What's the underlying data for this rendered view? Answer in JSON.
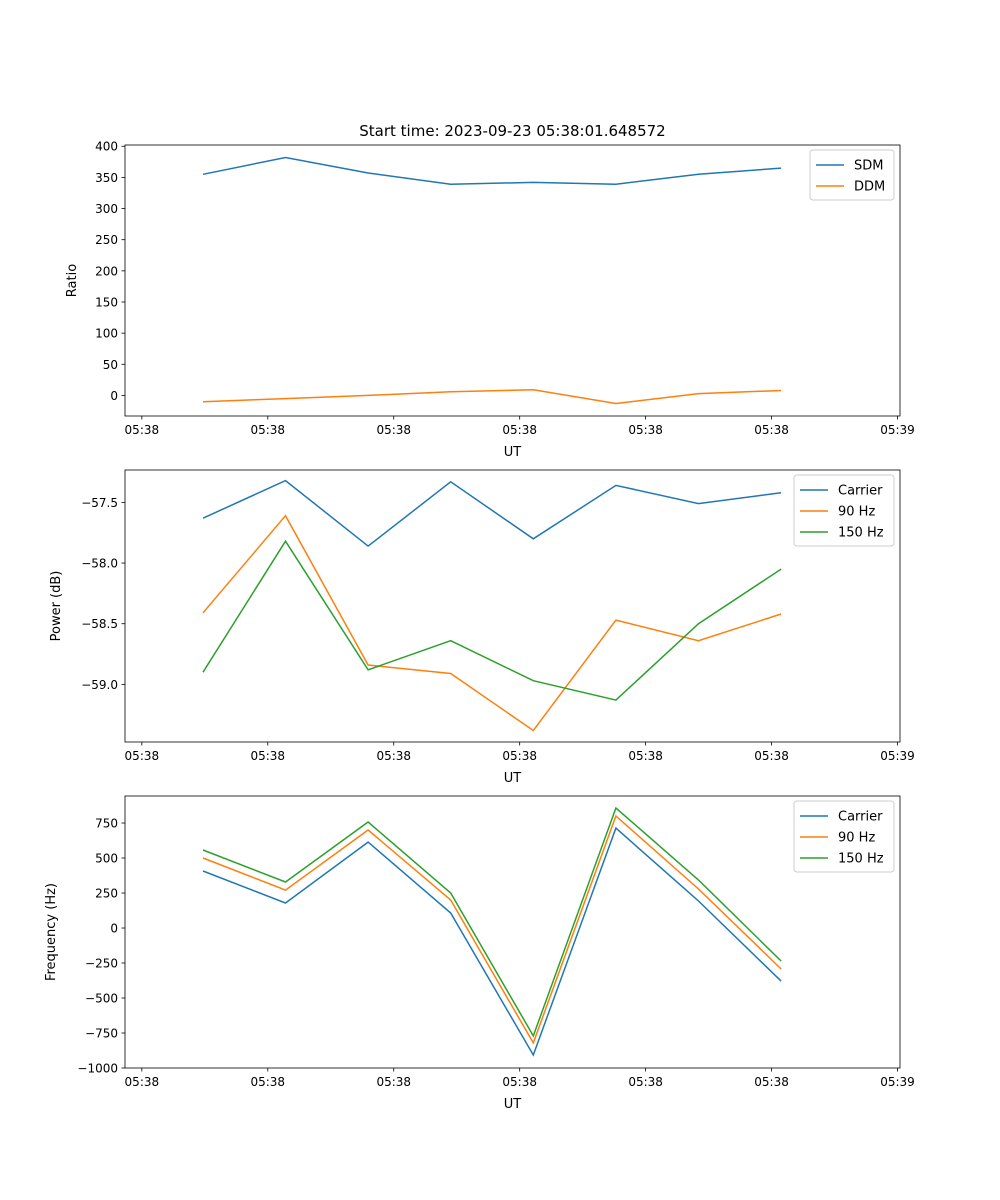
{
  "chart_data": [
    {
      "type": "line",
      "title": "Start time: 2023-09-23 05:38:01.648572",
      "xlabel": "UT",
      "ylabel": "Ratio",
      "x": [
        0,
        1,
        2,
        3,
        4,
        5,
        6,
        7
      ],
      "xlim": [
        -0.944,
        8.44
      ],
      "xticks": [
        -0.74,
        0.785,
        2.31,
        3.835,
        5.36,
        6.885,
        8.41
      ],
      "xtick_labels": [
        "05:38",
        "05:38",
        "05:38",
        "05:38",
        "05:38",
        "05:38",
        "05:39"
      ],
      "ylim": [
        -33,
        402
      ],
      "yticks": [
        0,
        50,
        100,
        150,
        200,
        250,
        300,
        350,
        400
      ],
      "ytick_labels": [
        "0",
        "50",
        "100",
        "150",
        "200",
        "250",
        "300",
        "350",
        "400"
      ],
      "legend": "top-right",
      "series": [
        {
          "name": "SDM",
          "color": "#1f77b4",
          "values": [
            355,
            382,
            357,
            339,
            342,
            339,
            355,
            365
          ]
        },
        {
          "name": "DDM",
          "color": "#ff7f0e",
          "values": [
            -10,
            -5,
            0,
            6,
            9,
            -13,
            3,
            8
          ]
        }
      ]
    },
    {
      "type": "line",
      "title": "",
      "xlabel": "UT",
      "ylabel": "Power (dB)",
      "x": [
        0,
        1,
        2,
        3,
        4,
        5,
        6,
        7
      ],
      "xlim": [
        -0.944,
        8.44
      ],
      "xticks": [
        -0.74,
        0.785,
        2.31,
        3.835,
        5.36,
        6.885,
        8.41
      ],
      "xtick_labels": [
        "05:38",
        "05:38",
        "05:38",
        "05:38",
        "05:38",
        "05:38",
        "05:39"
      ],
      "ylim": [
        -59.475,
        -57.233
      ],
      "yticks": [
        -57.5,
        -58.0,
        -58.5,
        -59.0
      ],
      "ytick_labels": [
        "−57.5",
        "−58.0",
        "−58.5",
        "−59.0"
      ],
      "legend": "top-right",
      "series": [
        {
          "name": "Carrier",
          "color": "#1f77b4",
          "values": [
            -57.63,
            -57.32,
            -57.86,
            -57.33,
            -57.8,
            -57.36,
            -57.51,
            -57.42
          ]
        },
        {
          "name": "90 Hz",
          "color": "#ff7f0e",
          "values": [
            -58.41,
            -57.61,
            -58.84,
            -58.91,
            -59.38,
            -58.47,
            -58.64,
            -58.42
          ]
        },
        {
          "name": "150 Hz",
          "color": "#2ca02c",
          "values": [
            -58.9,
            -57.82,
            -58.88,
            -58.64,
            -58.97,
            -59.13,
            -58.5,
            -58.05
          ]
        }
      ]
    },
    {
      "type": "line",
      "title": "",
      "xlabel": "UT",
      "ylabel": "Frequency (Hz)",
      "x": [
        0,
        1,
        2,
        3,
        4,
        5,
        6,
        7
      ],
      "xlim": [
        -0.944,
        8.44
      ],
      "xticks": [
        -0.74,
        0.785,
        2.31,
        3.835,
        5.36,
        6.885,
        8.41
      ],
      "xtick_labels": [
        "05:38",
        "05:38",
        "05:38",
        "05:38",
        "05:38",
        "05:38",
        "05:39"
      ],
      "ylim": [
        -1000,
        943
      ],
      "yticks": [
        750,
        500,
        250,
        0,
        -250,
        -500,
        -750,
        -1000
      ],
      "ytick_labels": [
        "750",
        "500",
        "250",
        "0",
        "−250",
        "−500",
        "−750",
        "−1000"
      ],
      "legend": "top-right",
      "series": [
        {
          "name": "Carrier",
          "color": "#1f77b4",
          "values": [
            407,
            179,
            614,
            107,
            -907,
            714,
            193,
            -379
          ]
        },
        {
          "name": "90 Hz",
          "color": "#ff7f0e",
          "values": [
            500,
            271,
            700,
            200,
            -821,
            800,
            279,
            -293
          ]
        },
        {
          "name": "150 Hz",
          "color": "#2ca02c",
          "values": [
            557,
            329,
            757,
            250,
            -771,
            857,
            343,
            -236
          ]
        }
      ]
    }
  ]
}
